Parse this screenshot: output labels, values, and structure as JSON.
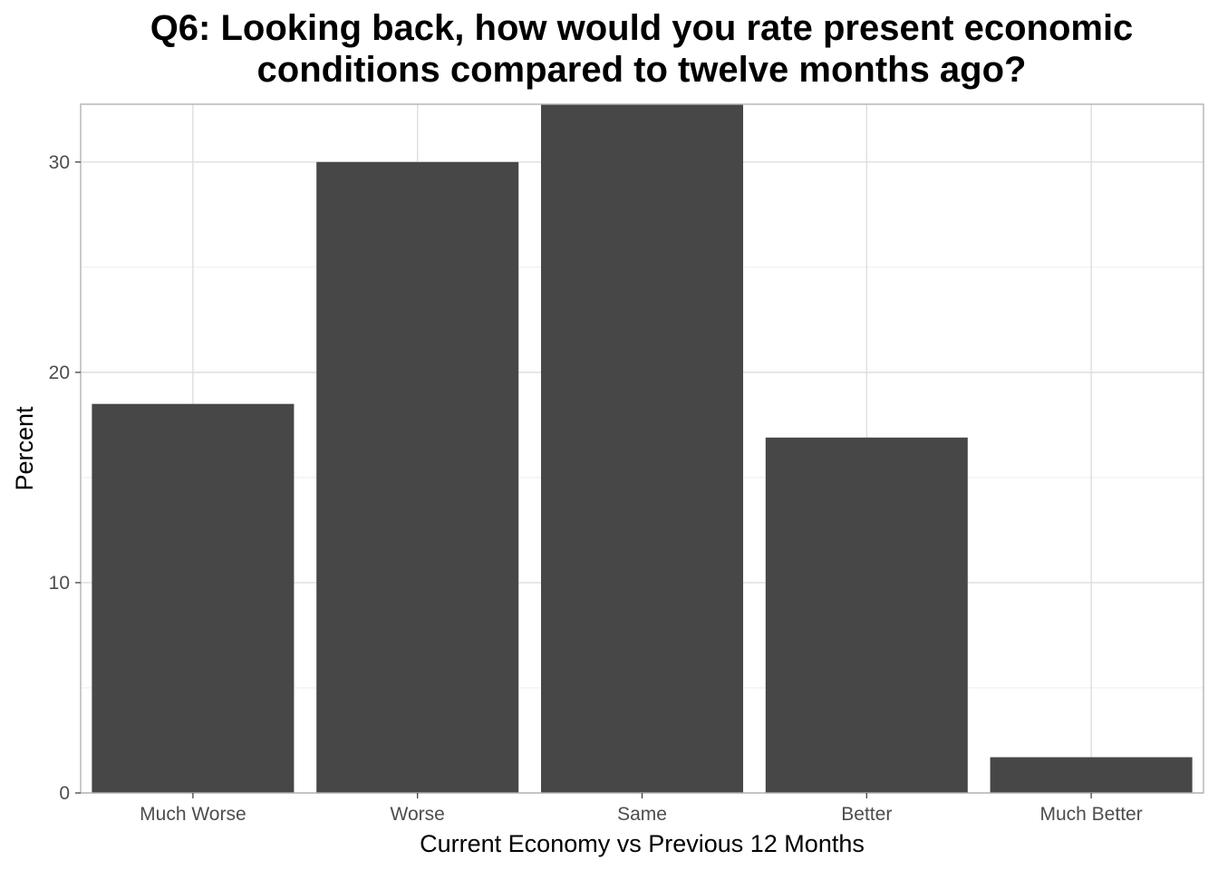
{
  "chart_data": {
    "type": "bar",
    "title_lines": [
      "Q6: Looking back, how would you rate present economic",
      "conditions compared to twelve months ago?"
    ],
    "xlabel": "Current Economy vs Previous 12 Months",
    "ylabel": "Percent",
    "categories": [
      "Much Worse",
      "Worse",
      "Same",
      "Better",
      "Much Better"
    ],
    "values": [
      18.5,
      30.0,
      33.5,
      16.9,
      1.7
    ],
    "ylim": [
      0,
      32.75
    ],
    "yticks": [
      0,
      10,
      20,
      30
    ],
    "grid": true,
    "colors": {
      "bar": "#474747",
      "grid": "#dedede",
      "panel_border": "#b3b3b3"
    }
  }
}
